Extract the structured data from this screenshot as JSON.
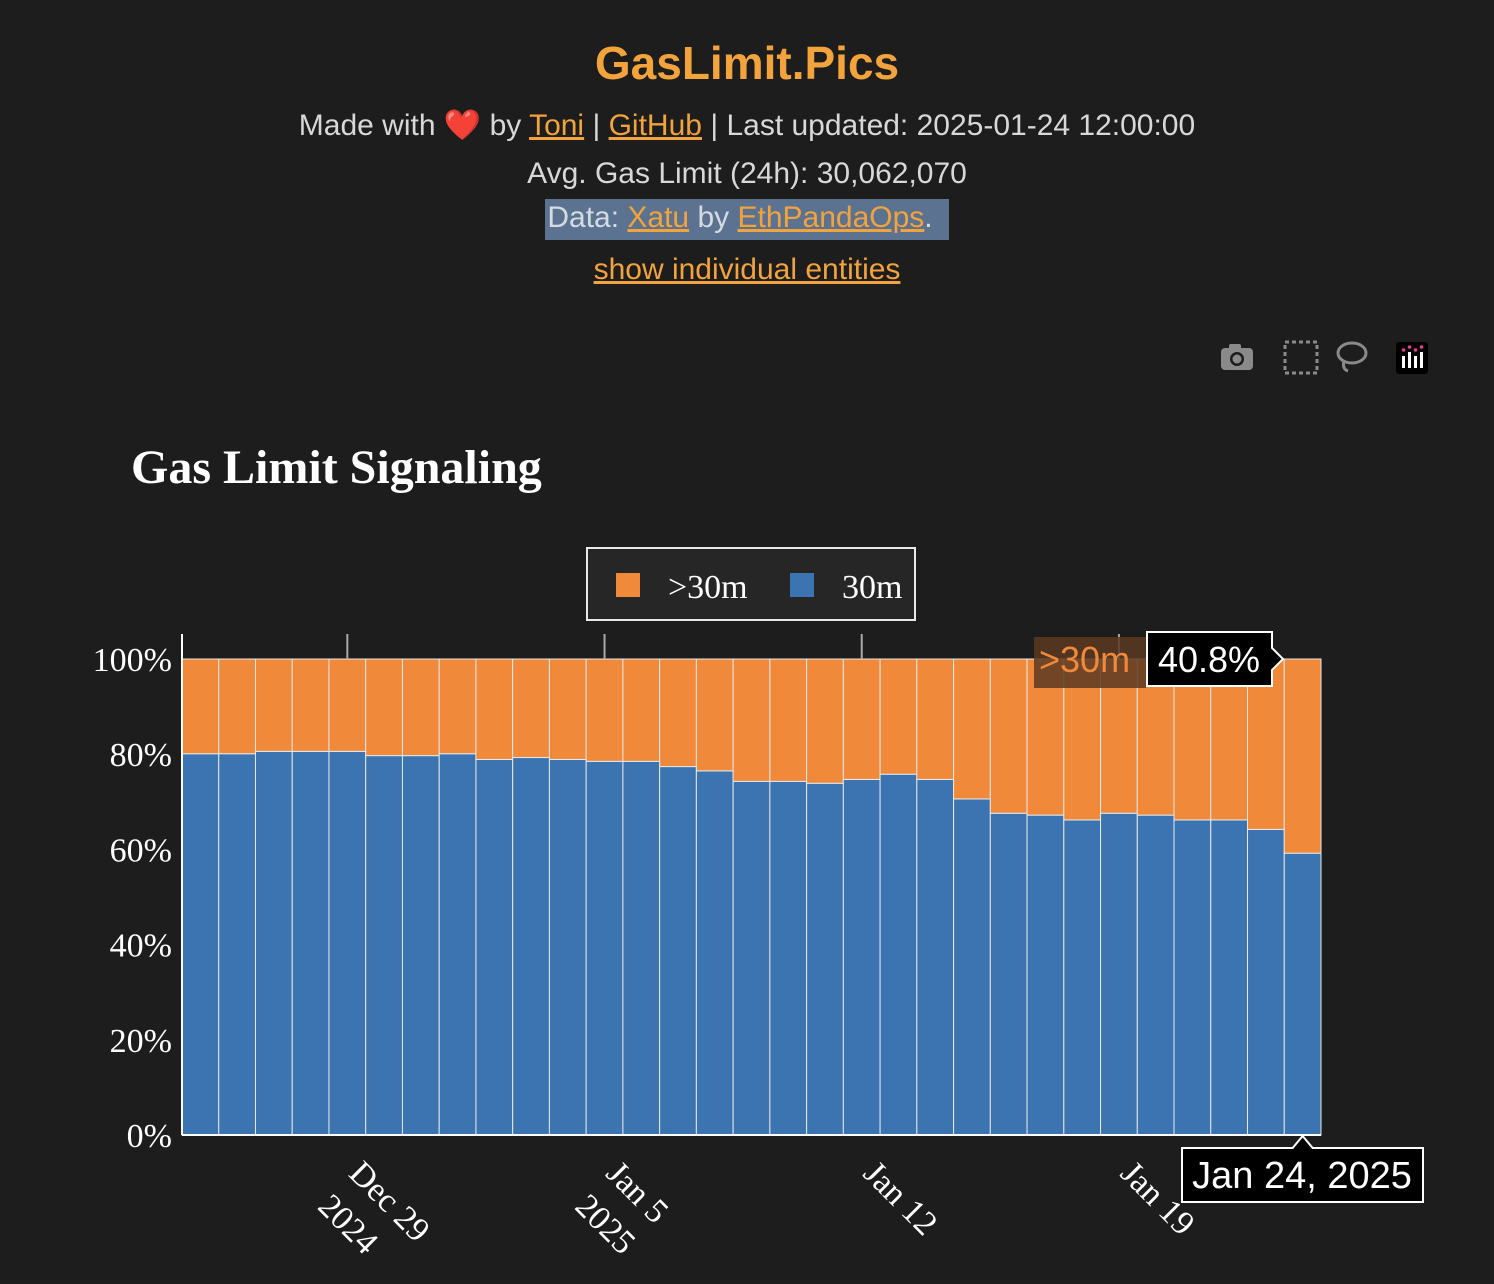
{
  "header": {
    "title": "GasLimit.Pics",
    "made_with": "Made with",
    "heart": "❤️",
    "by": "by",
    "author_link": "Toni",
    "sep1": "|",
    "github_link": "GitHub",
    "sep2": "|",
    "last_updated": "Last updated: 2025-01-24 12:00:00",
    "avg_gas_limit": "Avg. Gas Limit (24h): 30,062,070",
    "data_prefix": "Data:",
    "data_link": "Xatu",
    "data_by": "by",
    "data_org_link": "EthPandaOps",
    "data_suffix": ".",
    "toggle_link": "show individual entities"
  },
  "toolbar": {
    "icons": [
      "camera-icon",
      "box-select-icon",
      "lasso-select-icon",
      "plotly-logo-icon"
    ]
  },
  "colors": {
    "accent": "#f3a33b",
    "above_30m": "#f0893a",
    "at_30m": "#3b74b0",
    "background": "#1d1d1d"
  },
  "chart_data": {
    "type": "bar",
    "stacked": true,
    "title": "Gas Limit Signaling",
    "x": [
      "2024-12-25",
      "2024-12-26",
      "2024-12-27",
      "2024-12-28",
      "2024-12-29",
      "2024-12-30",
      "2024-12-31",
      "2025-01-01",
      "2025-01-02",
      "2025-01-03",
      "2025-01-04",
      "2025-01-05",
      "2025-01-06",
      "2025-01-07",
      "2025-01-08",
      "2025-01-09",
      "2025-01-10",
      "2025-01-11",
      "2025-01-12",
      "2025-01-13",
      "2025-01-14",
      "2025-01-15",
      "2025-01-16",
      "2025-01-17",
      "2025-01-18",
      "2025-01-19",
      "2025-01-20",
      "2025-01-21",
      "2025-01-22",
      "2025-01-23",
      "2025-01-24"
    ],
    "series": [
      {
        "name": "30m",
        "color": "#3b74b0",
        "values": [
          80.1,
          80.1,
          80.6,
          80.6,
          80.6,
          79.7,
          79.7,
          80.1,
          78.9,
          79.3,
          78.9,
          78.5,
          78.5,
          77.4,
          76.5,
          74.3,
          74.3,
          73.9,
          74.7,
          75.8,
          74.7,
          70.6,
          67.6,
          67.2,
          66.2,
          67.6,
          67.2,
          66.2,
          66.2,
          64.2,
          59.2
        ]
      },
      {
        "name": ">30m",
        "color": "#f0893a",
        "values": [
          19.9,
          19.9,
          19.4,
          19.4,
          19.4,
          20.3,
          20.3,
          19.9,
          21.1,
          20.7,
          21.1,
          21.5,
          21.5,
          22.6,
          23.5,
          25.7,
          25.7,
          26.1,
          25.3,
          24.2,
          25.3,
          29.4,
          32.4,
          32.8,
          33.8,
          32.4,
          32.8,
          33.8,
          33.8,
          35.8,
          40.8
        ]
      }
    ],
    "legend": {
      "placement": "top-center",
      "order": [
        ">30m",
        "30m"
      ]
    },
    "ylim": [
      0,
      100
    ],
    "y_ticks": [
      "0%",
      "20%",
      "40%",
      "60%",
      "80%",
      "100%"
    ],
    "y_tick_values": [
      0,
      20,
      40,
      60,
      80,
      100
    ],
    "x_ticks": [
      {
        "date": "2024-12-29",
        "line1": "Dec 29",
        "line2": "2024"
      },
      {
        "date": "2025-01-05",
        "line1": "Jan 5",
        "line2": "2025"
      },
      {
        "date": "2025-01-12",
        "line1": "Jan 12",
        "line2": ""
      },
      {
        "date": "2025-01-19",
        "line1": "Jan 19",
        "line2": ""
      }
    ],
    "hover": {
      "x": "2025-01-24",
      "x_label": "Jan 24, 2025",
      "series": ">30m",
      "value_label": "40.8%"
    }
  }
}
